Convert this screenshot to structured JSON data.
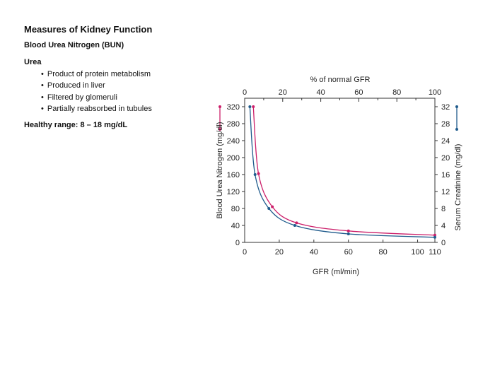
{
  "page": {
    "title": "Measures of Kidney Function",
    "subtitle": "Blood Urea Nitrogen (BUN)",
    "section": "Urea",
    "bullets": [
      "Product of protein metabolism",
      "Produced in liver",
      "Filtered by glomeruli",
      "Partially reabsorbed in tubules"
    ],
    "healthy_range": "Healthy range: 8 – 18 mg/dL"
  },
  "colors": {
    "bun": "#cc1f6a",
    "creatinine": "#1f5b8c",
    "axis": "#333333"
  },
  "chart_data": {
    "type": "line",
    "xlabel": "GFR (ml/min)",
    "x2label": "% of normal GFR",
    "ylabel": "Blood Urea Nitrogen (mg/dl)",
    "y2label": "Serum Creatinine (mg/dl)",
    "xlim": [
      0,
      110
    ],
    "x2lim": [
      0,
      100
    ],
    "ylim": [
      0,
      320
    ],
    "y2lim": [
      0,
      32
    ],
    "xticks": [
      0,
      20,
      40,
      60,
      80,
      100,
      110
    ],
    "x2ticks": [
      0,
      20,
      40,
      60,
      80,
      100
    ],
    "yticks": [
      0,
      40,
      80,
      120,
      160,
      200,
      240,
      280,
      320
    ],
    "y2ticks": [
      0,
      4,
      8,
      12,
      16,
      20,
      24,
      28,
      32
    ],
    "grid": false,
    "series": [
      {
        "name": "Blood Urea Nitrogen",
        "axis": "left",
        "x": [
          5,
          8,
          16,
          30,
          60,
          110
        ],
        "y": [
          320,
          162,
          84,
          46,
          27,
          17
        ]
      },
      {
        "name": "Serum Creatinine",
        "axis": "right",
        "x": [
          3,
          6,
          14,
          29,
          60,
          110
        ],
        "y": [
          32,
          16,
          8,
          4,
          2,
          1.2
        ]
      }
    ],
    "legend_markers": [
      {
        "series": "Blood Urea Nitrogen",
        "side": "left"
      },
      {
        "series": "Serum Creatinine",
        "side": "right"
      }
    ]
  }
}
